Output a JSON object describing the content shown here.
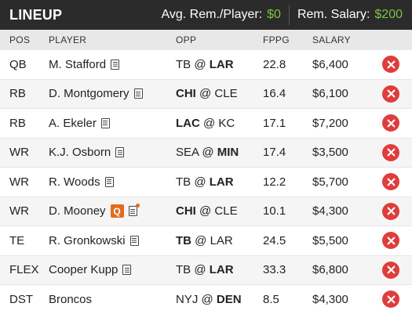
{
  "header": {
    "title": "LINEUP",
    "avg_label": "Avg. Rem./Player:",
    "avg_value": "$0",
    "rem_label": "Rem. Salary:",
    "rem_value": "$200"
  },
  "columns": {
    "pos": "POS",
    "player": "PLAYER",
    "opp": "OPP",
    "fppg": "FPPG",
    "salary": "SALARY"
  },
  "rows": [
    {
      "pos": "QB",
      "player": "M. Stafford",
      "opp_left": "TB",
      "opp_sep": " @ ",
      "opp_right": "LAR",
      "bold": "right",
      "fppg": "22.8",
      "salary": "$6,400",
      "icon": "note-icon"
    },
    {
      "pos": "RB",
      "player": "D. Montgomery",
      "opp_left": "CHI",
      "opp_sep": " @ ",
      "opp_right": "CLE",
      "bold": "left",
      "fppg": "16.4",
      "salary": "$6,100",
      "icon": "note-icon"
    },
    {
      "pos": "RB",
      "player": "A. Ekeler",
      "opp_left": "LAC",
      "opp_sep": " @ ",
      "opp_right": "KC",
      "bold": "left",
      "fppg": "17.1",
      "salary": "$7,200",
      "icon": "note-icon"
    },
    {
      "pos": "WR",
      "player": "K.J. Osborn",
      "opp_left": "SEA",
      "opp_sep": " @ ",
      "opp_right": "MIN",
      "bold": "right",
      "fppg": "17.4",
      "salary": "$3,500",
      "icon": "note-icon"
    },
    {
      "pos": "WR",
      "player": "R. Woods",
      "opp_left": "TB",
      "opp_sep": " @ ",
      "opp_right": "LAR",
      "bold": "right",
      "fppg": "12.2",
      "salary": "$5,700",
      "icon": "note-icon"
    },
    {
      "pos": "WR",
      "player": "D. Mooney",
      "opp_left": "CHI",
      "opp_sep": " @ ",
      "opp_right": "CLE",
      "bold": "left",
      "fppg": "10.1",
      "salary": "$4,300",
      "icon": "note-icon",
      "badge": "Q",
      "news": true
    },
    {
      "pos": "TE",
      "player": "R. Gronkowski",
      "opp_left": "TB",
      "opp_sep": " @ ",
      "opp_right": "LAR",
      "bold": "left",
      "fppg": "24.5",
      "salary": "$5,500",
      "icon": "note-icon"
    },
    {
      "pos": "FLEX",
      "player": "Cooper Kupp",
      "opp_left": "TB",
      "opp_sep": " @ ",
      "opp_right": "LAR",
      "bold": "right",
      "fppg": "33.3",
      "salary": "$6,800",
      "icon": "note-icon"
    },
    {
      "pos": "DST",
      "player": "Broncos",
      "opp_left": "NYJ",
      "opp_sep": " @ ",
      "opp_right": "DEN",
      "bold": "right",
      "fppg": "8.5",
      "salary": "$4,300",
      "icon": null
    }
  ],
  "colors": {
    "header_bg": "#2b2b2b",
    "accent_green": "#7cc242",
    "remove_red": "#e03c3c",
    "questionable_orange": "#e36a1c"
  },
  "remove_icon": "x-circle-icon"
}
